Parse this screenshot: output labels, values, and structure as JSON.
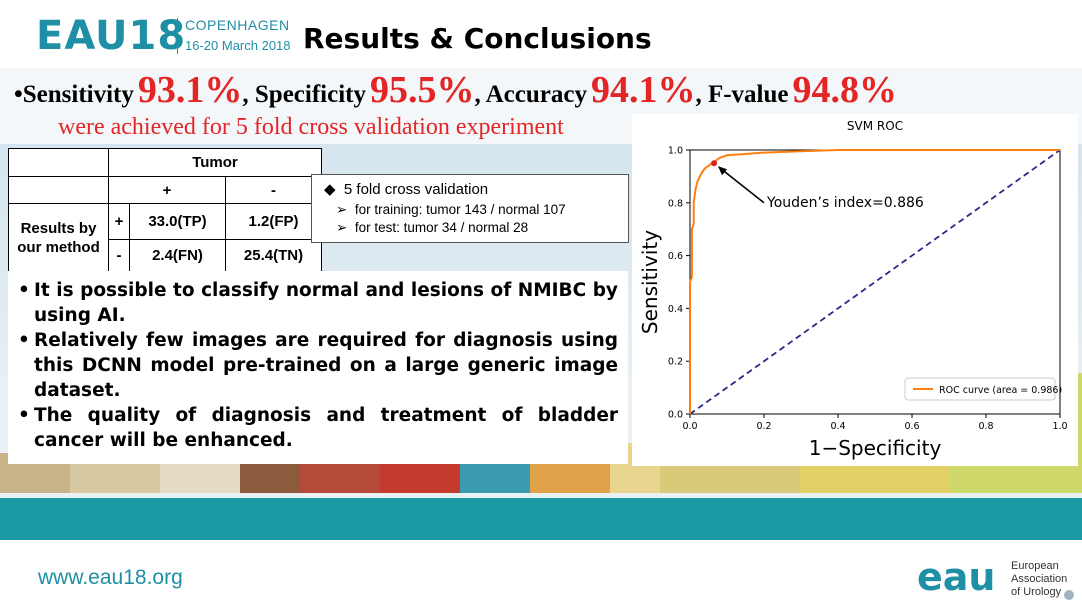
{
  "header": {
    "logo": "EAU18",
    "city": "COPENHAGEN",
    "dates": "16-20 March 2018",
    "title": "Results & Conclusions"
  },
  "stats": {
    "bullet": "•",
    "sensitivity_label": "Sensitivity",
    "sensitivity_value": "93.1%",
    "specificity_label": ", Specificity",
    "specificity_value": "95.5%",
    "accuracy_label": ", Accuracy",
    "accuracy_value": "94.1%",
    "fvalue_label": ", F-value",
    "fvalue_value": "94.8%",
    "subline": "were achieved for 5 fold cross validation experiment"
  },
  "table": {
    "tumor": "Tumor",
    "plus": "+",
    "minus": "-",
    "row_label": "Results by our method",
    "tp": "33.0(TP)",
    "fp": "1.2(FP)",
    "fn": "2.4(FN)",
    "tn": "25.4(TN)"
  },
  "cv": {
    "title": "5 fold cross validation",
    "training": "for training: tumor  143 / normal 107",
    "test": "for test: tumor 34 / normal 28"
  },
  "conclusions": [
    "It is possible to classify normal and lesions of NMIBC by using AI.",
    "Relatively few images are required for diagnosis using this DCNN model pre-trained on a large generic image dataset.",
    "The quality of diagnosis and treatment of bladder cancer will be enhanced."
  ],
  "chart_data": {
    "type": "line",
    "title": "SVM ROC",
    "xlabel": "1−Specificity",
    "ylabel": "Sensitivity",
    "xlim": [
      0,
      1
    ],
    "ylim": [
      0,
      1
    ],
    "xticks": [
      "0.0",
      "0.2",
      "0.4",
      "0.6",
      "0.8",
      "1.0"
    ],
    "yticks": [
      "0.0",
      "0.2",
      "0.4",
      "0.6",
      "0.8",
      "1.0"
    ],
    "legend_position": "bottom-right",
    "series": [
      {
        "name": "ROC curve (area = 0.986)",
        "color": "#ff7f0e",
        "x": [
          0.0,
          0.0,
          0.005,
          0.005,
          0.01,
          0.01,
          0.015,
          0.02,
          0.03,
          0.04,
          0.05,
          0.06,
          0.08,
          0.1,
          0.15,
          0.2,
          0.3,
          0.4,
          0.6,
          0.8,
          1.0
        ],
        "y": [
          0.0,
          0.5,
          0.52,
          0.7,
          0.72,
          0.8,
          0.85,
          0.88,
          0.91,
          0.93,
          0.94,
          0.95,
          0.97,
          0.98,
          0.985,
          0.99,
          0.995,
          1.0,
          1.0,
          1.0,
          1.0
        ]
      },
      {
        "name": "",
        "color": "#2a2a8a",
        "x": [
          0,
          1
        ],
        "y": [
          0,
          1
        ]
      }
    ],
    "marker": {
      "x": 0.065,
      "y": 0.95,
      "color": "#d62728"
    },
    "annotation": "Youden’s index=0.886"
  },
  "footer": {
    "url": "www.eau18.org",
    "logo": "eau",
    "org": [
      "European",
      "Association",
      "of Urology"
    ]
  }
}
